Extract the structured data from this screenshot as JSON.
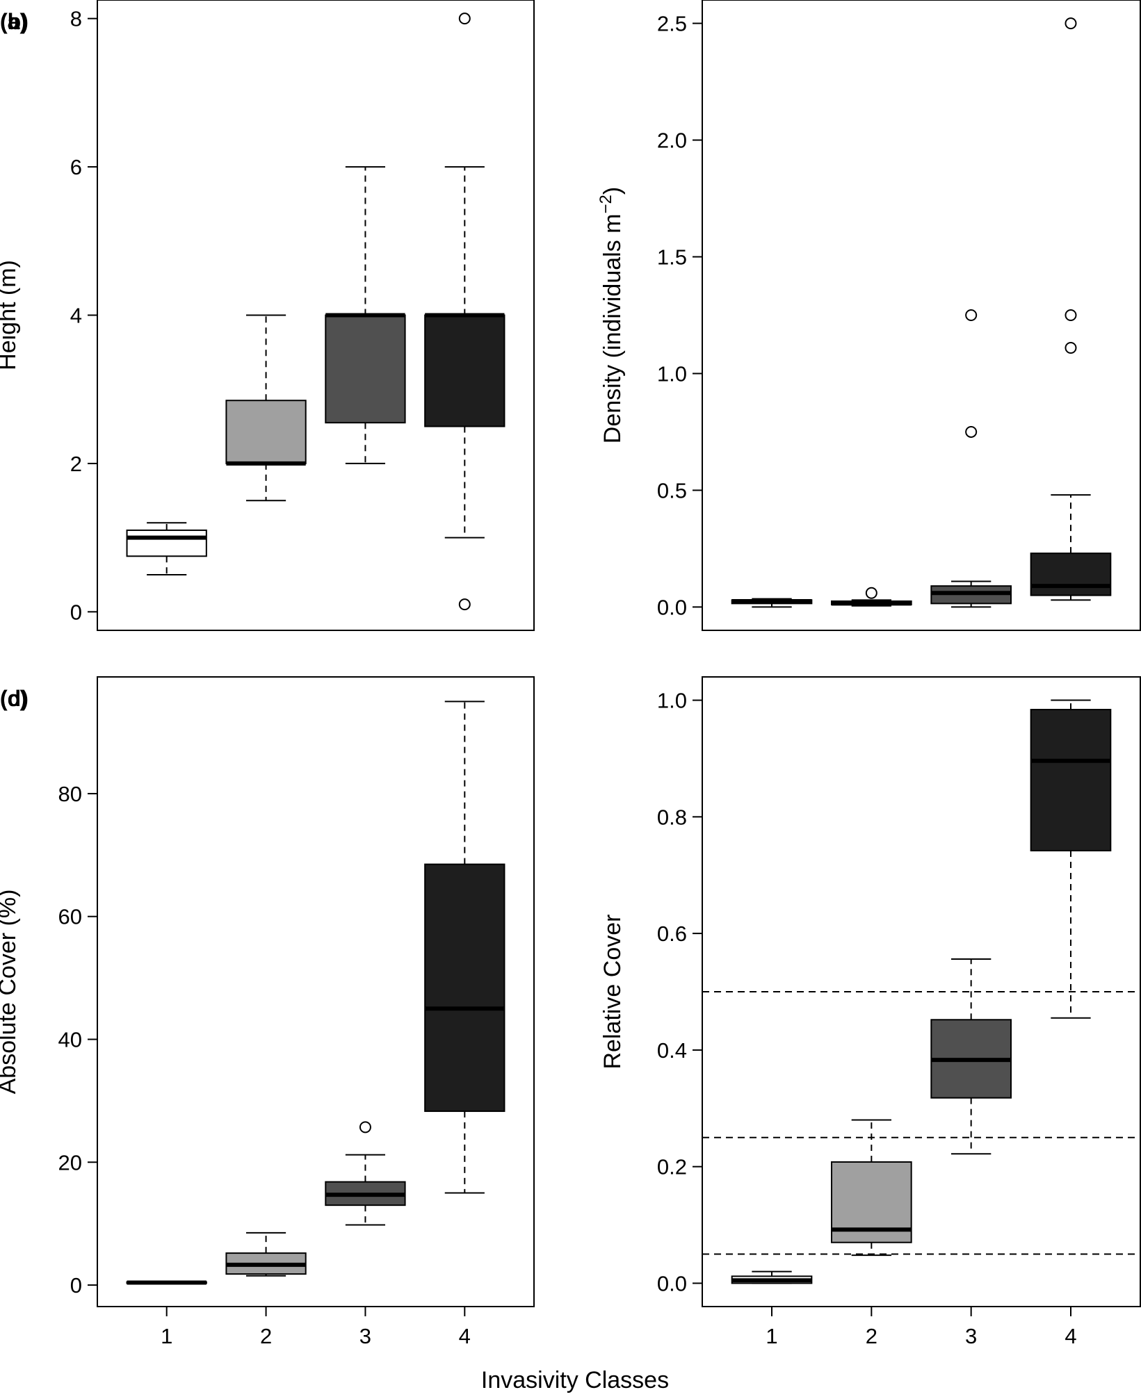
{
  "figure": {
    "shared_xlabel": "Invasivity Classes"
  },
  "colors": {
    "class_1": "#ffffff",
    "class_2": "#a0a0a0",
    "class_3": "#505050",
    "class_4": "#1e1e1e"
  },
  "chart_data": [
    {
      "type": "boxplot",
      "panel": "(a)",
      "ylabel": "Height (m)",
      "ylim": [
        -0.25,
        8.25
      ],
      "yticks": [
        "0",
        "2",
        "4",
        "6",
        "8"
      ],
      "ytick_values": [
        0,
        2,
        4,
        6,
        8
      ],
      "categories": [
        "1",
        "2",
        "3",
        "4"
      ],
      "show_xticks": false,
      "boxes": [
        {
          "class": "1",
          "whisker_low": 0.5,
          "q1": 0.75,
          "median": 1.0,
          "q3": 1.1,
          "whisker_high": 1.2,
          "outliers": []
        },
        {
          "class": "2",
          "whisker_low": 1.5,
          "q1": 2.0,
          "median": 2.0,
          "q3": 2.85,
          "whisker_high": 4.0,
          "outliers": []
        },
        {
          "class": "3",
          "whisker_low": 2.0,
          "q1": 2.55,
          "median": 4.0,
          "q3": 4.0,
          "whisker_high": 6.0,
          "outliers": []
        },
        {
          "class": "4",
          "whisker_low": 1.0,
          "q1": 2.5,
          "median": 4.0,
          "q3": 4.0,
          "whisker_high": 6.0,
          "outliers": [
            0.1,
            8.0
          ]
        }
      ],
      "hlines": []
    },
    {
      "type": "boxplot",
      "panel": "(b)",
      "ylabel": "Density (individuals m",
      "ylabel_sup": "−2",
      "ylabel_tail": ")",
      "ylim": [
        -0.1,
        2.6
      ],
      "yticks": [
        "0.0",
        "0.5",
        "1.0",
        "1.5",
        "2.0",
        "2.5"
      ],
      "ytick_values": [
        0.0,
        0.5,
        1.0,
        1.5,
        2.0,
        2.5
      ],
      "categories": [
        "1",
        "2",
        "3",
        "4"
      ],
      "show_xticks": false,
      "boxes": [
        {
          "class": "1",
          "whisker_low": 0.0,
          "q1": 0.015,
          "median": 0.025,
          "q3": 0.03,
          "whisker_high": 0.035,
          "outliers": []
        },
        {
          "class": "2",
          "whisker_low": 0.005,
          "q1": 0.01,
          "median": 0.015,
          "q3": 0.025,
          "whisker_high": 0.03,
          "outliers": [
            0.06
          ]
        },
        {
          "class": "3",
          "whisker_low": 0.0,
          "q1": 0.015,
          "median": 0.06,
          "q3": 0.09,
          "whisker_high": 0.11,
          "outliers": [
            0.75,
            1.25
          ]
        },
        {
          "class": "4",
          "whisker_low": 0.03,
          "q1": 0.05,
          "median": 0.09,
          "q3": 0.23,
          "whisker_high": 0.48,
          "outliers": [
            1.11,
            1.25,
            2.5
          ]
        }
      ],
      "hlines": []
    },
    {
      "type": "boxplot",
      "panel": "(c)",
      "ylabel": "Absolute Cover (%)",
      "ylim": [
        -3.5,
        99
      ],
      "yticks": [
        "0",
        "20",
        "40",
        "60",
        "80"
      ],
      "ytick_values": [
        0,
        20,
        40,
        60,
        80
      ],
      "categories": [
        "1",
        "2",
        "3",
        "4"
      ],
      "show_xticks": true,
      "boxes": [
        {
          "class": "1",
          "whisker_low": 0.2,
          "q1": 0.3,
          "median": 0.4,
          "q3": 0.5,
          "whisker_high": 0.6,
          "outliers": []
        },
        {
          "class": "2",
          "whisker_low": 1.5,
          "q1": 1.8,
          "median": 3.3,
          "q3": 5.2,
          "whisker_high": 8.5,
          "outliers": []
        },
        {
          "class": "3",
          "whisker_low": 9.8,
          "q1": 13.0,
          "median": 14.7,
          "q3": 16.8,
          "whisker_high": 21.2,
          "outliers": [
            25.7
          ]
        },
        {
          "class": "4",
          "whisker_low": 15.0,
          "q1": 28.3,
          "median": 45.0,
          "q3": 68.5,
          "whisker_high": 95.0,
          "outliers": []
        }
      ],
      "hlines": []
    },
    {
      "type": "boxplot",
      "panel": "(d)",
      "ylabel": "Relative Cover",
      "ylim": [
        -0.04,
        1.04
      ],
      "yticks": [
        "0.0",
        "0.2",
        "0.4",
        "0.6",
        "0.8",
        "1.0"
      ],
      "ytick_values": [
        0.0,
        0.2,
        0.4,
        0.6,
        0.8,
        1.0
      ],
      "categories": [
        "1",
        "2",
        "3",
        "4"
      ],
      "show_xticks": true,
      "boxes": [
        {
          "class": "1",
          "whisker_low": 0.0,
          "q1": 0.0,
          "median": 0.005,
          "q3": 0.012,
          "whisker_high": 0.02,
          "outliers": []
        },
        {
          "class": "2",
          "whisker_low": 0.048,
          "q1": 0.07,
          "median": 0.092,
          "q3": 0.208,
          "whisker_high": 0.28,
          "outliers": []
        },
        {
          "class": "3",
          "whisker_low": 0.222,
          "q1": 0.318,
          "median": 0.383,
          "q3": 0.452,
          "whisker_high": 0.556,
          "outliers": []
        },
        {
          "class": "4",
          "whisker_low": 0.455,
          "q1": 0.742,
          "median": 0.896,
          "q3": 0.984,
          "whisker_high": 1.0,
          "outliers": []
        }
      ],
      "hlines": [
        0.05,
        0.25,
        0.5
      ]
    }
  ]
}
